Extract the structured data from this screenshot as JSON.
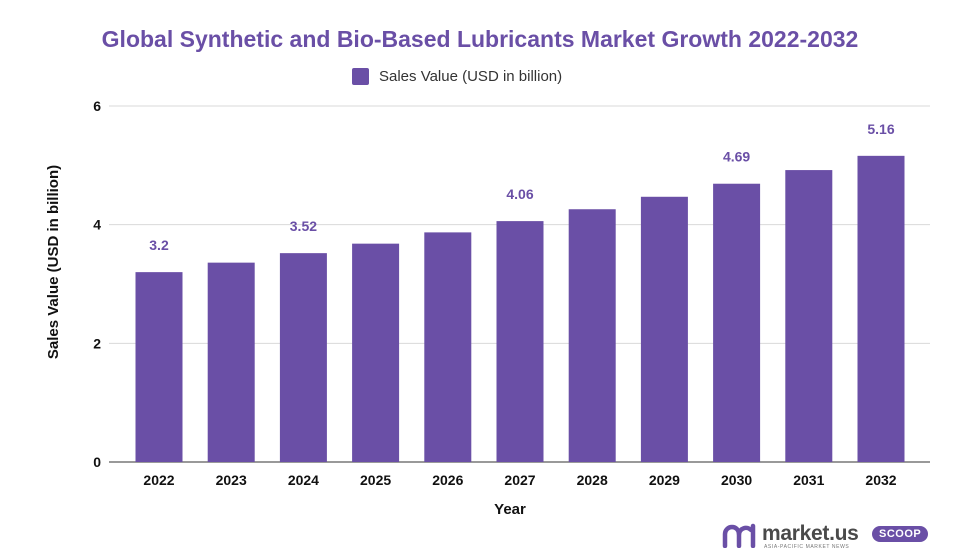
{
  "chart_data": {
    "type": "bar",
    "title": "Global Synthetic and Bio-Based Lubricants Market Growth 2022-2032",
    "xlabel": "Year",
    "ylabel": "Sales Value (USD in billion)",
    "ylim": [
      0,
      6
    ],
    "yticks": [
      "0",
      "2",
      "4",
      "6"
    ],
    "grid": true,
    "legend_position": "top-center",
    "categories": [
      "2022",
      "2023",
      "2024",
      "2025",
      "2026",
      "2027",
      "2028",
      "2029",
      "2030",
      "2031",
      "2032"
    ],
    "series": [
      {
        "name": "Sales Value (USD in billion)",
        "values": [
          3.2,
          3.36,
          3.52,
          3.68,
          3.87,
          4.06,
          4.26,
          4.47,
          4.69,
          4.92,
          5.16
        ],
        "color": "#6a4fa6"
      }
    ],
    "data_labels": [
      "3.2",
      "",
      "3.52",
      "",
      "",
      "4.06",
      "",
      "",
      "4.69",
      "",
      "5.16"
    ]
  },
  "brand": {
    "name": "market.us",
    "badge": "SCOOP",
    "tagline": "ASIA-PACIFIC MARKET NEWS",
    "color": "#6a4fa6"
  }
}
